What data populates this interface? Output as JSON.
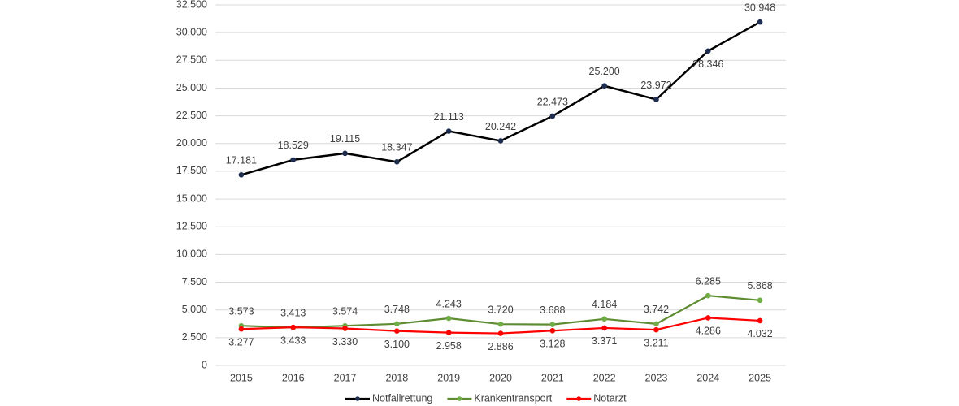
{
  "chart_data": {
    "type": "line",
    "categories": [
      "2015",
      "2016",
      "2017",
      "2018",
      "2019",
      "2020",
      "2021",
      "2022",
      "2023",
      "2024",
      "2025"
    ],
    "series": [
      {
        "name": "Notfallrettung",
        "color": "#000000",
        "marker_color": "#1f2d50",
        "values": [
          17181,
          18529,
          19115,
          18347,
          21113,
          20242,
          22473,
          25200,
          23972,
          28346,
          30948
        ],
        "value_labels": [
          "17.181",
          "18.529",
          "19.115",
          "18.347",
          "21.113",
          "20.242",
          "22.473",
          "25.200",
          "23.972",
          "28.346",
          "30.948"
        ]
      },
      {
        "name": "Krankentransport",
        "color": "#5e8c31",
        "marker_color": "#70ad47",
        "values": [
          3573,
          3413,
          3574,
          3748,
          4243,
          3720,
          3688,
          4184,
          3742,
          6285,
          5868
        ],
        "value_labels": [
          "3.573",
          "3.413",
          "3.574",
          "3.748",
          "4.243",
          "3.720",
          "3.688",
          "4.184",
          "3.742",
          "6.285",
          "5.868"
        ]
      },
      {
        "name": "Notarzt",
        "color": "#ff0000",
        "marker_color": "#ff0000",
        "values": [
          3277,
          3433,
          3330,
          3100,
          2958,
          2886,
          3128,
          3371,
          3211,
          4286,
          4032
        ],
        "value_labels": [
          "3.277",
          "3.433",
          "3.330",
          "3.100",
          "2.958",
          "2.886",
          "3.128",
          "3.371",
          "3.211",
          "4.286",
          "4.032"
        ]
      }
    ],
    "ylim": [
      0,
      32500
    ],
    "yticks": [
      {
        "value": 0,
        "label": "0"
      },
      {
        "value": 2500,
        "label": "2.500"
      },
      {
        "value": 5000,
        "label": "5.000"
      },
      {
        "value": 7500,
        "label": "7.500"
      },
      {
        "value": 10000,
        "label": "10.000"
      },
      {
        "value": 12500,
        "label": "12.500"
      },
      {
        "value": 15000,
        "label": "15.000"
      },
      {
        "value": 17500,
        "label": "17.500"
      },
      {
        "value": 20000,
        "label": "20.000"
      },
      {
        "value": 22500,
        "label": "22.500"
      },
      {
        "value": 25000,
        "label": "25.000"
      },
      {
        "value": 27500,
        "label": "27.500"
      },
      {
        "value": 30000,
        "label": "30.000"
      },
      {
        "value": 32500,
        "label": "32.500"
      }
    ],
    "grid": true,
    "legend": "bottom"
  }
}
